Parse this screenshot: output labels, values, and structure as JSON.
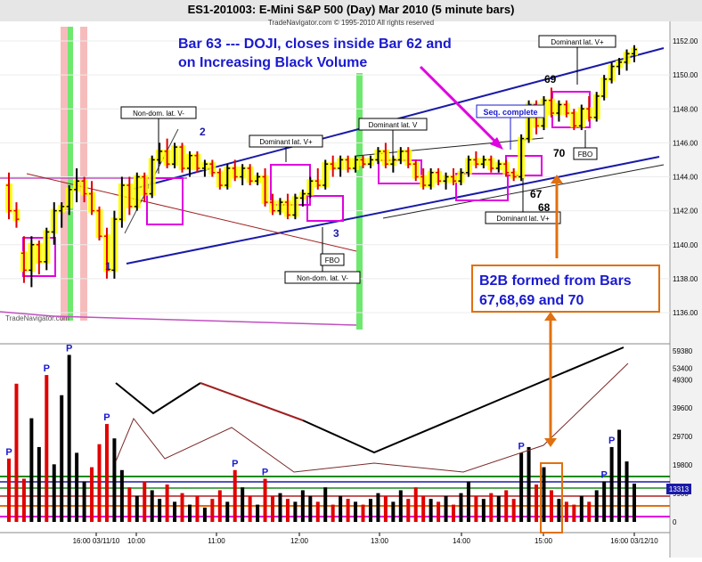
{
  "header": {
    "title": "ES1-201003:  E-Mini S&P 500 (Day) Mar 2010  (5 minute bars)",
    "copyright": "TradeNavigator.com © 1995-2010 All rights reserved",
    "watermark": "TradeNavigator.com"
  },
  "annotations": {
    "doji_line1": "Bar 63 --- DOJI, closes inside Bar 62 and",
    "doji_line2": "on Increasing  Black Volume",
    "b2b_line1": "B2B formed from Bars",
    "b2b_line2": "67,68,69 and 70",
    "seq_complete": "Seq. complete",
    "nondom_top": "Non-dom. lat. V-",
    "dominant_v_plus_1": "Dominant lat. V+",
    "dominant_v": "Dominant lat. V",
    "dominant_v_plus_top": "Dominant lat. V+",
    "dominant_v_plus_bottom": "Dominant lat. V+",
    "nondom_bottom": "Non-dom. lat. V-",
    "fbo_1": "FBO",
    "fbo_2": "FBO",
    "bar_1": "1",
    "bar_2": "2",
    "bar_3": "3",
    "bar_67": "67",
    "bar_68": "68",
    "bar_69": "69",
    "bar_70": "70"
  },
  "colors": {
    "up_bar": "#000000",
    "down_bar": "#e00000",
    "container_fill": "#ffff00",
    "channel": "#1a1aa8",
    "magenta": "#e000e0",
    "annotation_blue": "#1a1ad0",
    "annotation_orange": "#e07010",
    "green_band": "#6ee86e",
    "pink_band": "#f4b0b0"
  },
  "chart_data": {
    "type": "candlestick",
    "price_axis": {
      "ticks": [
        "1152.00",
        "1150.00",
        "1148.00",
        "1146.00",
        "1144.00",
        "1142.00",
        "1140.00",
        "1138.00",
        "1136.00"
      ],
      "range": [
        1135.5,
        1153
      ]
    },
    "volume_axis": {
      "ticks": [
        "59380",
        "53400",
        "49300",
        "39600",
        "29700",
        "19800",
        "9900",
        "0"
      ],
      "current_value": "13313",
      "range": [
        0,
        61000
      ]
    },
    "time_axis": {
      "ticks": [
        "16:00 03/11/10",
        "10:00",
        "11:00",
        "12:00",
        "13:00",
        "14:00",
        "15:00",
        "16:00 03/12/10"
      ]
    },
    "price_bars": [
      {
        "o": 1143.5,
        "h": 1144.25,
        "l": 1141.5,
        "c": 1142.0
      },
      {
        "o": 1142.0,
        "h": 1142.5,
        "l": 1141.0,
        "c": 1141.5
      },
      {
        "o": 1139.5,
        "h": 1140.5,
        "l": 1137.75,
        "c": 1138.5
      },
      {
        "o": 1138.5,
        "h": 1140.5,
        "l": 1137.5,
        "c": 1140.0
      },
      {
        "o": 1140.0,
        "h": 1140.25,
        "l": 1138.25,
        "c": 1139.0
      },
      {
        "o": 1139.0,
        "h": 1141.0,
        "l": 1138.5,
        "c": 1140.75
      },
      {
        "o": 1140.75,
        "h": 1142.5,
        "l": 1140.0,
        "c": 1142.0
      },
      {
        "o": 1142.0,
        "h": 1142.5,
        "l": 1141.0,
        "c": 1142.25
      },
      {
        "o": 1142.25,
        "h": 1143.5,
        "l": 1141.75,
        "c": 1143.25
      },
      {
        "o": 1143.25,
        "h": 1144.5,
        "l": 1142.5,
        "c": 1143.75
      },
      {
        "o": 1143.75,
        "h": 1144.0,
        "l": 1142.5,
        "c": 1143.0
      },
      {
        "o": 1143.0,
        "h": 1143.75,
        "l": 1141.75,
        "c": 1142.0
      },
      {
        "o": 1142.0,
        "h": 1142.25,
        "l": 1140.25,
        "c": 1140.5
      },
      {
        "o": 1140.5,
        "h": 1141.0,
        "l": 1138.0,
        "c": 1138.5
      },
      {
        "o": 1138.5,
        "h": 1142.0,
        "l": 1138.0,
        "c": 1141.5
      },
      {
        "o": 1141.5,
        "h": 1144.0,
        "l": 1141.0,
        "c": 1143.5
      },
      {
        "o": 1143.5,
        "h": 1144.0,
        "l": 1141.75,
        "c": 1142.25
      },
      {
        "o": 1142.25,
        "h": 1144.25,
        "l": 1142.0,
        "c": 1144.0
      },
      {
        "o": 1144.0,
        "h": 1144.25,
        "l": 1142.5,
        "c": 1143.0
      },
      {
        "o": 1143.0,
        "h": 1145.25,
        "l": 1142.75,
        "c": 1145.0
      },
      {
        "o": 1145.0,
        "h": 1146.0,
        "l": 1144.75,
        "c": 1145.5
      },
      {
        "o": 1145.5,
        "h": 1146.25,
        "l": 1144.5,
        "c": 1144.75
      },
      {
        "o": 1144.75,
        "h": 1146.0,
        "l": 1144.5,
        "c": 1145.75
      },
      {
        "o": 1145.75,
        "h": 1146.0,
        "l": 1144.25,
        "c": 1144.5
      },
      {
        "o": 1144.5,
        "h": 1145.5,
        "l": 1144.0,
        "c": 1145.25
      },
      {
        "o": 1145.25,
        "h": 1145.5,
        "l": 1144.25,
        "c": 1144.5
      },
      {
        "o": 1144.5,
        "h": 1145.0,
        "l": 1144.0,
        "c": 1144.75
      },
      {
        "o": 1144.75,
        "h": 1145.0,
        "l": 1144.0,
        "c": 1144.25
      },
      {
        "o": 1144.25,
        "h": 1144.5,
        "l": 1143.25,
        "c": 1143.5
      },
      {
        "o": 1143.5,
        "h": 1144.75,
        "l": 1143.25,
        "c": 1144.5
      },
      {
        "o": 1144.5,
        "h": 1145.0,
        "l": 1143.75,
        "c": 1144.0
      },
      {
        "o": 1144.0,
        "h": 1144.75,
        "l": 1143.5,
        "c": 1144.5
      },
      {
        "o": 1144.5,
        "h": 1144.75,
        "l": 1143.5,
        "c": 1143.75
      },
      {
        "o": 1143.75,
        "h": 1144.25,
        "l": 1143.5,
        "c": 1144.0
      },
      {
        "o": 1144.0,
        "h": 1144.5,
        "l": 1142.25,
        "c": 1142.5
      },
      {
        "o": 1142.5,
        "h": 1143.0,
        "l": 1141.75,
        "c": 1142.0
      },
      {
        "o": 1142.0,
        "h": 1142.75,
        "l": 1141.75,
        "c": 1142.5
      },
      {
        "o": 1142.5,
        "h": 1143.0,
        "l": 1141.5,
        "c": 1141.75
      },
      {
        "o": 1141.75,
        "h": 1143.0,
        "l": 1141.5,
        "c": 1142.75
      },
      {
        "o": 1142.75,
        "h": 1143.25,
        "l": 1142.25,
        "c": 1143.0
      },
      {
        "o": 1143.0,
        "h": 1144.0,
        "l": 1142.75,
        "c": 1143.75
      },
      {
        "o": 1143.75,
        "h": 1144.5,
        "l": 1143.25,
        "c": 1143.5
      },
      {
        "o": 1143.5,
        "h": 1145.0,
        "l": 1143.25,
        "c": 1144.75
      },
      {
        "o": 1144.75,
        "h": 1145.25,
        "l": 1144.0,
        "c": 1144.5
      },
      {
        "o": 1144.5,
        "h": 1145.25,
        "l": 1144.0,
        "c": 1145.0
      },
      {
        "o": 1145.0,
        "h": 1145.25,
        "l": 1144.25,
        "c": 1144.5
      },
      {
        "o": 1144.5,
        "h": 1145.25,
        "l": 1144.25,
        "c": 1145.0
      },
      {
        "o": 1145.0,
        "h": 1145.25,
        "l": 1144.5,
        "c": 1144.75
      },
      {
        "o": 1144.75,
        "h": 1145.25,
        "l": 1144.5,
        "c": 1145.0
      },
      {
        "o": 1145.0,
        "h": 1145.75,
        "l": 1144.75,
        "c": 1145.5
      },
      {
        "o": 1145.5,
        "h": 1146.0,
        "l": 1144.5,
        "c": 1144.75
      },
      {
        "o": 1144.75,
        "h": 1145.25,
        "l": 1144.25,
        "c": 1145.0
      },
      {
        "o": 1145.0,
        "h": 1145.75,
        "l": 1144.75,
        "c": 1145.5
      },
      {
        "o": 1145.5,
        "h": 1145.75,
        "l": 1144.5,
        "c": 1144.75
      },
      {
        "o": 1144.75,
        "h": 1145.0,
        "l": 1143.75,
        "c": 1144.0
      },
      {
        "o": 1144.0,
        "h": 1144.5,
        "l": 1143.25,
        "c": 1143.5
      },
      {
        "o": 1143.5,
        "h": 1144.5,
        "l": 1143.25,
        "c": 1144.25
      },
      {
        "o": 1144.25,
        "h": 1144.5,
        "l": 1143.5,
        "c": 1143.75
      },
      {
        "o": 1143.75,
        "h": 1144.25,
        "l": 1143.25,
        "c": 1144.0
      },
      {
        "o": 1144.0,
        "h": 1144.5,
        "l": 1143.5,
        "c": 1143.75
      },
      {
        "o": 1143.75,
        "h": 1144.5,
        "l": 1143.5,
        "c": 1144.25
      },
      {
        "o": 1144.25,
        "h": 1145.25,
        "l": 1144.0,
        "c": 1145.0
      },
      {
        "o": 1145.0,
        "h": 1145.5,
        "l": 1144.5,
        "c": 1144.75
      },
      {
        "o": 1144.75,
        "h": 1145.25,
        "l": 1144.5,
        "c": 1145.0
      },
      {
        "o": 1145.0,
        "h": 1145.25,
        "l": 1144.25,
        "c": 1144.5
      },
      {
        "o": 1144.5,
        "h": 1145.0,
        "l": 1144.25,
        "c": 1144.75
      },
      {
        "o": 1144.75,
        "h": 1145.0,
        "l": 1144.0,
        "c": 1144.25
      },
      {
        "o": 1144.25,
        "h": 1144.5,
        "l": 1143.75,
        "c": 1144.0
      },
      {
        "o": 1144.0,
        "h": 1146.5,
        "l": 1143.75,
        "c": 1146.25
      },
      {
        "o": 1146.25,
        "h": 1148.5,
        "l": 1146.0,
        "c": 1148.25
      },
      {
        "o": 1148.25,
        "h": 1148.5,
        "l": 1146.5,
        "c": 1147.0
      },
      {
        "o": 1147.0,
        "h": 1148.75,
        "l": 1146.75,
        "c": 1148.5
      },
      {
        "o": 1148.5,
        "h": 1149.25,
        "l": 1147.5,
        "c": 1147.75
      },
      {
        "o": 1147.75,
        "h": 1148.5,
        "l": 1147.25,
        "c": 1148.25
      },
      {
        "o": 1148.25,
        "h": 1148.5,
        "l": 1147.5,
        "c": 1147.75
      },
      {
        "o": 1147.75,
        "h": 1148.0,
        "l": 1146.75,
        "c": 1147.0
      },
      {
        "o": 1147.0,
        "h": 1148.25,
        "l": 1146.75,
        "c": 1148.0
      },
      {
        "o": 1148.0,
        "h": 1148.75,
        "l": 1147.25,
        "c": 1147.5
      },
      {
        "o": 1147.5,
        "h": 1149.0,
        "l": 1147.25,
        "c": 1148.75
      },
      {
        "o": 1148.75,
        "h": 1150.0,
        "l": 1148.5,
        "c": 1149.75
      },
      {
        "o": 1149.75,
        "h": 1150.75,
        "l": 1149.5,
        "c": 1150.5
      },
      {
        "o": 1150.5,
        "h": 1151.0,
        "l": 1150.0,
        "c": 1150.75
      },
      {
        "o": 1150.75,
        "h": 1151.5,
        "l": 1150.25,
        "c": 1151.25
      },
      {
        "o": 1151.25,
        "h": 1151.75,
        "l": 1150.75,
        "c": 1151.5
      }
    ],
    "volume_bars": [
      {
        "v": 22000,
        "up": false
      },
      {
        "v": 48000,
        "up": false
      },
      {
        "v": 15000,
        "up": false
      },
      {
        "v": 36000,
        "up": true
      },
      {
        "v": 26000,
        "up": true
      },
      {
        "v": 51000,
        "up": false
      },
      {
        "v": 20000,
        "up": true
      },
      {
        "v": 44000,
        "up": true
      },
      {
        "v": 58000,
        "up": true
      },
      {
        "v": 24000,
        "up": true
      },
      {
        "v": 14000,
        "up": true
      },
      {
        "v": 19000,
        "up": false
      },
      {
        "v": 27000,
        "up": false
      },
      {
        "v": 34000,
        "up": false
      },
      {
        "v": 29000,
        "up": true
      },
      {
        "v": 18000,
        "up": true
      },
      {
        "v": 12000,
        "up": false
      },
      {
        "v": 9000,
        "up": true
      },
      {
        "v": 14000,
        "up": false
      },
      {
        "v": 11000,
        "up": true
      },
      {
        "v": 8000,
        "up": true
      },
      {
        "v": 13000,
        "up": false
      },
      {
        "v": 7000,
        "up": true
      },
      {
        "v": 10000,
        "up": false
      },
      {
        "v": 6000,
        "up": true
      },
      {
        "v": 9000,
        "up": false
      },
      {
        "v": 5000,
        "up": true
      },
      {
        "v": 8000,
        "up": false
      },
      {
        "v": 11000,
        "up": false
      },
      {
        "v": 7000,
        "up": true
      },
      {
        "v": 18000,
        "up": false
      },
      {
        "v": 12000,
        "up": true
      },
      {
        "v": 9000,
        "up": false
      },
      {
        "v": 6000,
        "up": true
      },
      {
        "v": 15000,
        "up": false
      },
      {
        "v": 9000,
        "up": false
      },
      {
        "v": 10000,
        "up": true
      },
      {
        "v": 8000,
        "up": false
      },
      {
        "v": 7000,
        "up": true
      },
      {
        "v": 11000,
        "up": true
      },
      {
        "v": 9000,
        "up": true
      },
      {
        "v": 7000,
        "up": false
      },
      {
        "v": 12000,
        "up": true
      },
      {
        "v": 6000,
        "up": false
      },
      {
        "v": 9000,
        "up": true
      },
      {
        "v": 8000,
        "up": false
      },
      {
        "v": 7000,
        "up": true
      },
      {
        "v": 6000,
        "up": false
      },
      {
        "v": 8000,
        "up": true
      },
      {
        "v": 10000,
        "up": true
      },
      {
        "v": 9000,
        "up": false
      },
      {
        "v": 7000,
        "up": true
      },
      {
        "v": 11000,
        "up": true
      },
      {
        "v": 8000,
        "up": false
      },
      {
        "v": 12000,
        "up": false
      },
      {
        "v": 9000,
        "up": false
      },
      {
        "v": 8000,
        "up": true
      },
      {
        "v": 7000,
        "up": false
      },
      {
        "v": 9000,
        "up": true
      },
      {
        "v": 6000,
        "up": false
      },
      {
        "v": 10000,
        "up": true
      },
      {
        "v": 14000,
        "up": true
      },
      {
        "v": 9000,
        "up": false
      },
      {
        "v": 8000,
        "up": true
      },
      {
        "v": 10000,
        "up": false
      },
      {
        "v": 9000,
        "up": true
      },
      {
        "v": 11000,
        "up": false
      },
      {
        "v": 8000,
        "up": false
      },
      {
        "v": 24000,
        "up": true
      },
      {
        "v": 26000,
        "up": true
      },
      {
        "v": 13000,
        "up": false
      },
      {
        "v": 19000,
        "up": true
      },
      {
        "v": 11000,
        "up": false
      },
      {
        "v": 8000,
        "up": true
      },
      {
        "v": 7000,
        "up": false
      },
      {
        "v": 6000,
        "up": false
      },
      {
        "v": 9000,
        "up": true
      },
      {
        "v": 7000,
        "up": false
      },
      {
        "v": 11000,
        "up": true
      },
      {
        "v": 14000,
        "up": true
      },
      {
        "v": 26000,
        "up": true
      },
      {
        "v": 32000,
        "up": true
      },
      {
        "v": 21000,
        "up": true
      },
      {
        "v": 13313,
        "up": true
      }
    ],
    "peak_labels": [
      {
        "bar": 0,
        "text": "P"
      },
      {
        "bar": 5,
        "text": "P"
      },
      {
        "bar": 8,
        "text": "P"
      },
      {
        "bar": 13,
        "text": "P"
      },
      {
        "bar": 30,
        "text": "P"
      },
      {
        "bar": 34,
        "text": "P"
      },
      {
        "bar": 68,
        "text": "P"
      },
      {
        "bar": 79,
        "text": "P"
      },
      {
        "bar": 80,
        "text": "P"
      }
    ]
  }
}
